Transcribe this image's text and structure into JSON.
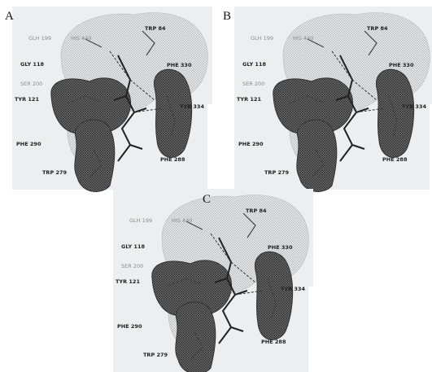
{
  "panels": [
    {
      "label": "A",
      "residues": [
        "GLH 199",
        "HIS 440",
        "TRP 84",
        "GLY 118",
        "PHE 330",
        "SER 200",
        "TYR 121",
        "TYR 334",
        "PHE 290",
        "PHE 288",
        "TRP 279"
      ]
    },
    {
      "label": "B",
      "residues": [
        "GLH 199",
        "HIS 440",
        "TRP 84",
        "GLY 118",
        "PHE 330",
        "SER 200",
        "TYR 121",
        "TYR 334",
        "PHE 290",
        "PHE 288",
        "TRP 279"
      ]
    },
    {
      "label": "C",
      "residues": [
        "GLH 199",
        "HIS 440",
        "TRP 84",
        "GLY 118",
        "PHE 330",
        "SER 200",
        "TYR 121",
        "TYR 334",
        "PHE 290",
        "PHE 288",
        "TRP 279"
      ]
    }
  ]
}
